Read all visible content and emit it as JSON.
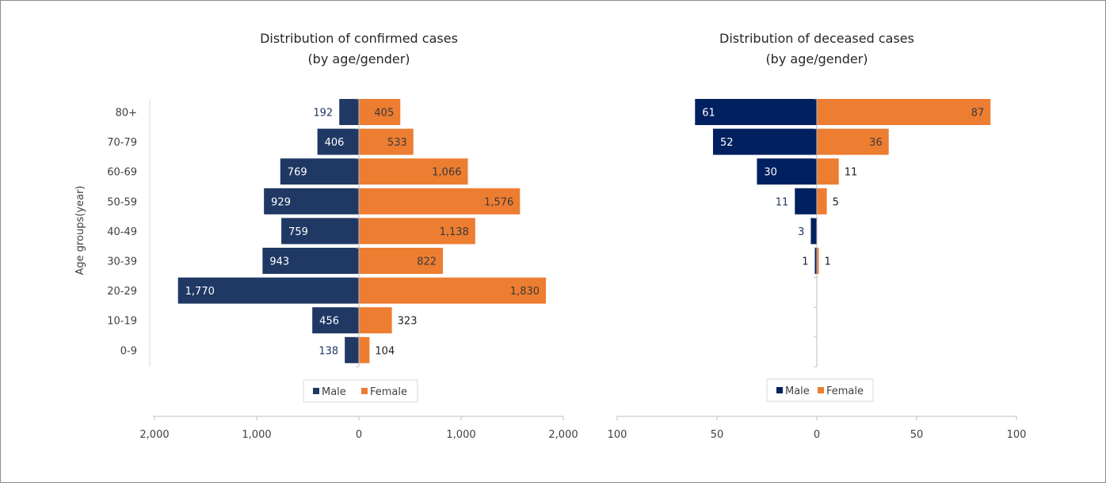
{
  "chart_data": [
    {
      "type": "bar",
      "orientation": "horizontal",
      "title_lines": [
        "Distribution of confirmed cases",
        "(by age/gender)"
      ],
      "ylabel": "Age groups(year)",
      "categories": [
        "80+",
        "70-79",
        "60-69",
        "50-59",
        "40-49",
        "30-39",
        "20-29",
        "10-19",
        "0-9"
      ],
      "series": [
        {
          "name": "Male",
          "values": [
            192,
            406,
            769,
            929,
            759,
            943,
            1770,
            456,
            138
          ],
          "labels": [
            "192",
            "406",
            "769",
            "929",
            "759",
            "943",
            "1,770",
            "456",
            "138"
          ]
        },
        {
          "name": "Female",
          "values": [
            405,
            533,
            1066,
            1576,
            1138,
            822,
            1830,
            323,
            104
          ],
          "labels": [
            "405",
            "533",
            "1,066",
            "1,576",
            "1,138",
            "822",
            "1,830",
            "323",
            "104"
          ]
        }
      ],
      "xlim": [
        -2000,
        2000
      ],
      "xticks": [
        -2000,
        -1000,
        0,
        1000,
        2000
      ],
      "xtick_labels": [
        "2,000",
        "1,000",
        "0",
        "1,000",
        "2,000"
      ],
      "legend": "bottom",
      "grid": false
    },
    {
      "type": "bar",
      "orientation": "horizontal",
      "title_lines": [
        "Distribution of deceased cases",
        "(by age/gender)"
      ],
      "categories": [
        "80+",
        "70-79",
        "60-69",
        "50-59",
        "40-49",
        "30-39",
        "20-29",
        "10-19",
        "0-9"
      ],
      "series": [
        {
          "name": "Male",
          "values": [
            61,
            52,
            30,
            11,
            3,
            1,
            0,
            0,
            0
          ],
          "labels": [
            "61",
            "52",
            "30",
            "11",
            "3",
            "1",
            null,
            null,
            null
          ]
        },
        {
          "name": "Female",
          "values": [
            87,
            36,
            11,
            5,
            0,
            1,
            0,
            0,
            0
          ],
          "labels": [
            "87",
            "36",
            "11",
            "5",
            null,
            "1",
            null,
            null,
            null
          ]
        }
      ],
      "xlim": [
        -100,
        100
      ],
      "xticks": [
        -100,
        -50,
        0,
        50,
        100
      ],
      "xtick_labels": [
        "100",
        "50",
        "0",
        "50",
        "100"
      ],
      "legend": "bottom",
      "grid": false
    }
  ],
  "colors": {
    "male_confirmed": "#203864",
    "male_deceased": "#002060",
    "female": "#ed7d31",
    "label_dark_text": "#1f3864",
    "label_light_text": "#ffffff",
    "label_on_orange": "#3a3a3a"
  }
}
